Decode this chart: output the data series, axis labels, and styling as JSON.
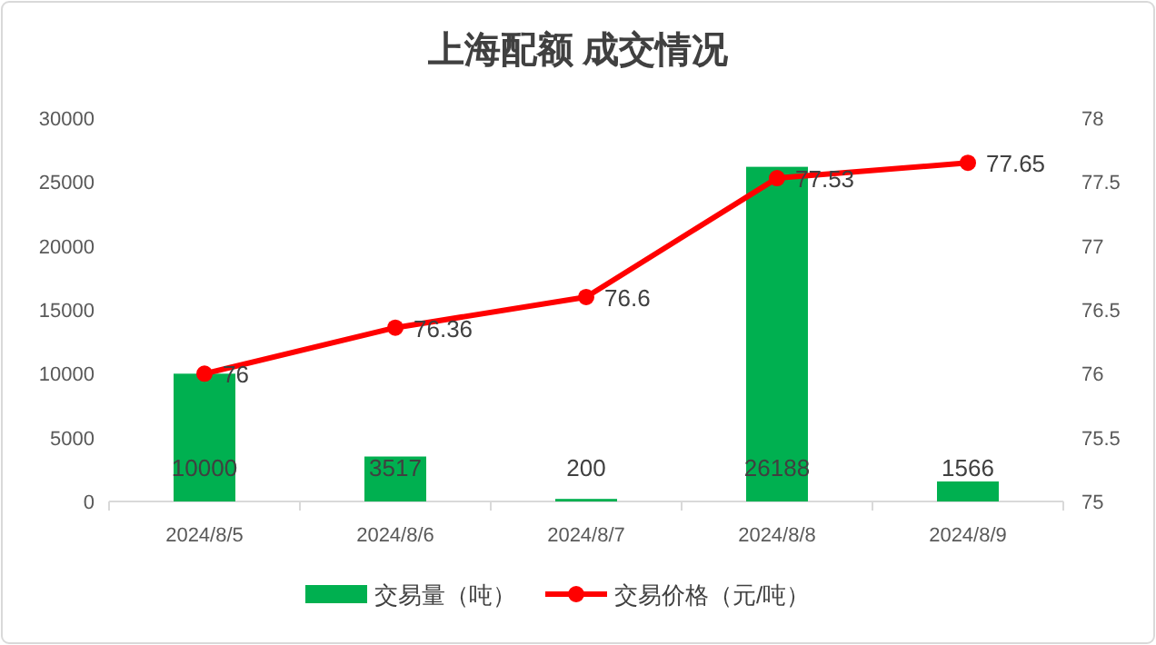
{
  "chart_data": {
    "type": "bar",
    "title": "上海配额 成交情况",
    "categories": [
      "2024/8/5",
      "2024/8/6",
      "2024/8/7",
      "2024/8/8",
      "2024/8/9"
    ],
    "series": [
      {
        "name": "交易量（吨）",
        "color": "#00b050",
        "values": [
          10000,
          3517,
          200,
          26188,
          1566
        ]
      },
      {
        "name": "交易价格（元/吨）",
        "type": "line",
        "axis": "y2",
        "color": "#ff0000",
        "marker": "circle",
        "values": [
          76,
          76.36,
          76.6,
          77.53,
          77.65
        ]
      }
    ],
    "ylim": [
      0,
      30000
    ],
    "yticks": [
      0,
      5000,
      10000,
      15000,
      20000,
      25000,
      30000
    ],
    "y2lim": [
      75,
      78
    ],
    "y2ticks": [
      75,
      75.5,
      76,
      76.5,
      77,
      77.5,
      78
    ],
    "data_labels": true,
    "legend": "bottom"
  }
}
